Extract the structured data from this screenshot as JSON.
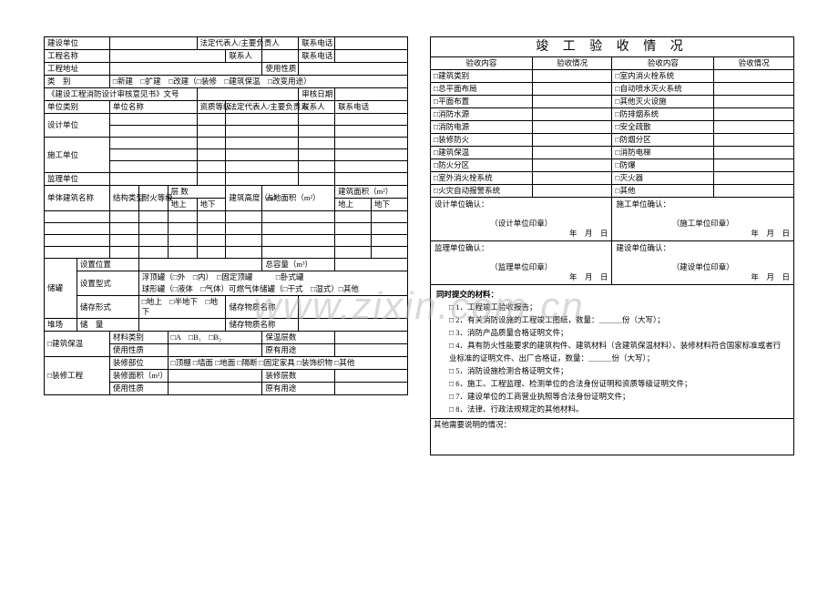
{
  "leftForm": {
    "row1": {
      "c1": "建设单位",
      "c2": "法定代表人/主要负责人",
      "c3": "联系电话"
    },
    "row2": {
      "c1": "工程名称",
      "c2": "联系人",
      "c3": "联系电话"
    },
    "row3": {
      "c1": "工程地址",
      "c2": "使用性质"
    },
    "row4": {
      "c1": "类　别",
      "c2": "□新建　□扩建　□改建（□装修　□建筑保温　□改变用途）"
    },
    "row5": {
      "c1": "《建设工程消防设计审核意见书》文号",
      "c2": "审核日期"
    },
    "row6": {
      "c1": "单位类别",
      "c2": "单位名称",
      "c3": "资质等级",
      "c4": "法定代表人/主要负责人",
      "c5": "联系人",
      "c6": "联系电话"
    },
    "row7": {
      "c1": "设计单位"
    },
    "row8": {
      "c1": "施工单位"
    },
    "row9": {
      "c1": "监理单位"
    },
    "row10": {
      "c1": "单体建筑名称",
      "c2": "结构类型",
      "c3": "耐火等级",
      "c4": "层 数",
      "c4a": "地上",
      "c4b": "地下",
      "c5": "建筑高度（m）",
      "c6": "占地面积（m²）",
      "c7": "建筑面积（m²）",
      "c7a": "地上",
      "c7b": "地下"
    },
    "tank": {
      "header": "储罐",
      "pos": "设置位置",
      "totalcap": "总容量（m³）",
      "type": "设置型式",
      "typeopts1": "浮顶罐（□外　□内）　□固定顶罐　　　□卧式罐",
      "typeopts2": "球形罐（□液体　□气体）可燃气体储罐（□干式　□湿式）□其他",
      "store": "储存形式",
      "storeopts": "□地上　□半地下　□地下",
      "mat": "储存物质名称"
    },
    "yard": {
      "header": "堆场",
      "store": "储　量",
      "mat": "储存物质名称"
    },
    "insul": {
      "header": "□建筑保温",
      "mat": "材料类别",
      "matopts": "□A　□B₁　□B₂",
      "layers": "保温层数",
      "use": "使用性质",
      "orig": "原有用途"
    },
    "decor": {
      "header": "□装修工程",
      "parts": "装修部位",
      "partsopts": "□顶棚 □墙面 □地面 □隔断 □固定家具 □装饰织物 □其他",
      "area": "装修面积（m²）",
      "layers": "装修层数",
      "use": "使用性质",
      "orig": "原有用途"
    }
  },
  "rightForm": {
    "title": "竣 工 验 收 情 况",
    "hdr": {
      "c1": "验收内容",
      "c2": "验收情况",
      "c3": "验收内容",
      "c4": "验收情况"
    },
    "rows": [
      {
        "l": "□建筑类别",
        "r": "□室内消火栓系统"
      },
      {
        "l": "□总平面布局",
        "r": "□自动喷水灭火系统"
      },
      {
        "l": "□平面布置",
        "r": "□其他灭火设施"
      },
      {
        "l": "□消防水源",
        "r": "□防排烟系统"
      },
      {
        "l": "□消防电源",
        "r": "□安全疏散"
      },
      {
        "l": "□装修防火",
        "r": "□防烟分区"
      },
      {
        "l": "□建筑保温",
        "r": "□消防电梯"
      },
      {
        "l": "□防火分区",
        "r": "□防爆"
      },
      {
        "l": "□室外消火栓系统",
        "r": "□灭火器"
      },
      {
        "l": "□火灾自动报警系统",
        "r": "□其他"
      }
    ],
    "sign": {
      "a": "设计单位确认：",
      "aSeal": "（设计单位印章）",
      "aDate": "年　月　日",
      "b": "施工单位确认：",
      "bSeal": "（施工单位印章）",
      "bDate": "年　月　日",
      "c": "监理单位确认：",
      "cSeal": "（监理单位印章）",
      "cDate": "年　月　日",
      "d": "建设单位确认：",
      "dSeal": "（建设单位印章）",
      "dDate": "年　月　日"
    },
    "materials": {
      "title": "同时提交的材料：",
      "items": [
        "□ 1．工程竣工验收报告；",
        "□ 2．有关消防设施的工程竣工图纸，数量：＿＿＿份（大写）；",
        "□ 3．消防产品质量合格证明文件；",
        "□ 4．具有防火性能要求的建筑构件、建筑材料（含建筑保温材料）、装修材料符合国家标准或者行业标准的证明文件、出厂合格证，数量：＿＿＿份（大写）；",
        "□ 5．消防设施检测合格证明文件；",
        "□ 6．施工、工程监理、检测单位的合法身份证明和资质等级证明文件；",
        "□ 7．建设单位的工商营业执照等合法身份证明文件；",
        "□ 8．法律、行政法规规定的其他材料。"
      ]
    },
    "other": "其他需要说明的情况："
  },
  "watermark": "www.zixin.com.cn"
}
